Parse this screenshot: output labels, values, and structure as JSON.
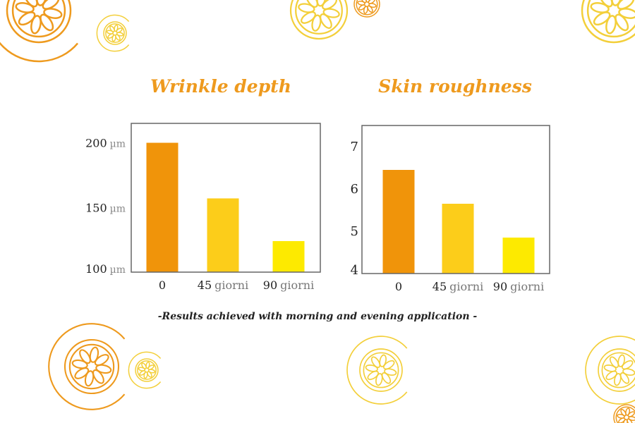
{
  "colors": {
    "bar_0": "#f0940a",
    "bar_45": "#fccd1a",
    "bar_90": "#fdea00",
    "title": "#ee9a1e",
    "deco_orange": "#ee9a1e",
    "deco_yellow": "#f3cf3a",
    "axis": "#666666"
  },
  "decorations": {
    "icon": "orange-slice-c-logo-icon"
  },
  "chart_data": [
    {
      "type": "bar",
      "title": "Wrinkle depth",
      "categories": [
        "0",
        "45 giorni",
        "90 giorni"
      ],
      "category_parts": [
        [
          "0",
          ""
        ],
        [
          "45",
          "giorni"
        ],
        [
          "90",
          "giorni"
        ]
      ],
      "values": [
        200,
        157,
        124
      ],
      "unit": "µm",
      "yticks": [
        "100",
        "150",
        "200"
      ],
      "ytick_values": [
        100,
        150,
        200
      ],
      "ylim": [
        100,
        215
      ],
      "grid": false
    },
    {
      "type": "bar",
      "title": "Skin roughness",
      "categories": [
        "0",
        "45 giorni",
        "90 giorni"
      ],
      "category_parts": [
        [
          "0",
          ""
        ],
        [
          "45",
          "giorni"
        ],
        [
          "90",
          "giorni"
        ]
      ],
      "values": [
        6.45,
        5.65,
        4.85
      ],
      "unit": "",
      "yticks": [
        "4",
        "5",
        "6",
        "7"
      ],
      "ytick_values": [
        4,
        5,
        6,
        7
      ],
      "ylim": [
        4,
        7.5
      ],
      "grid": false
    }
  ],
  "footer": "-Results achieved with morning and evening application -"
}
